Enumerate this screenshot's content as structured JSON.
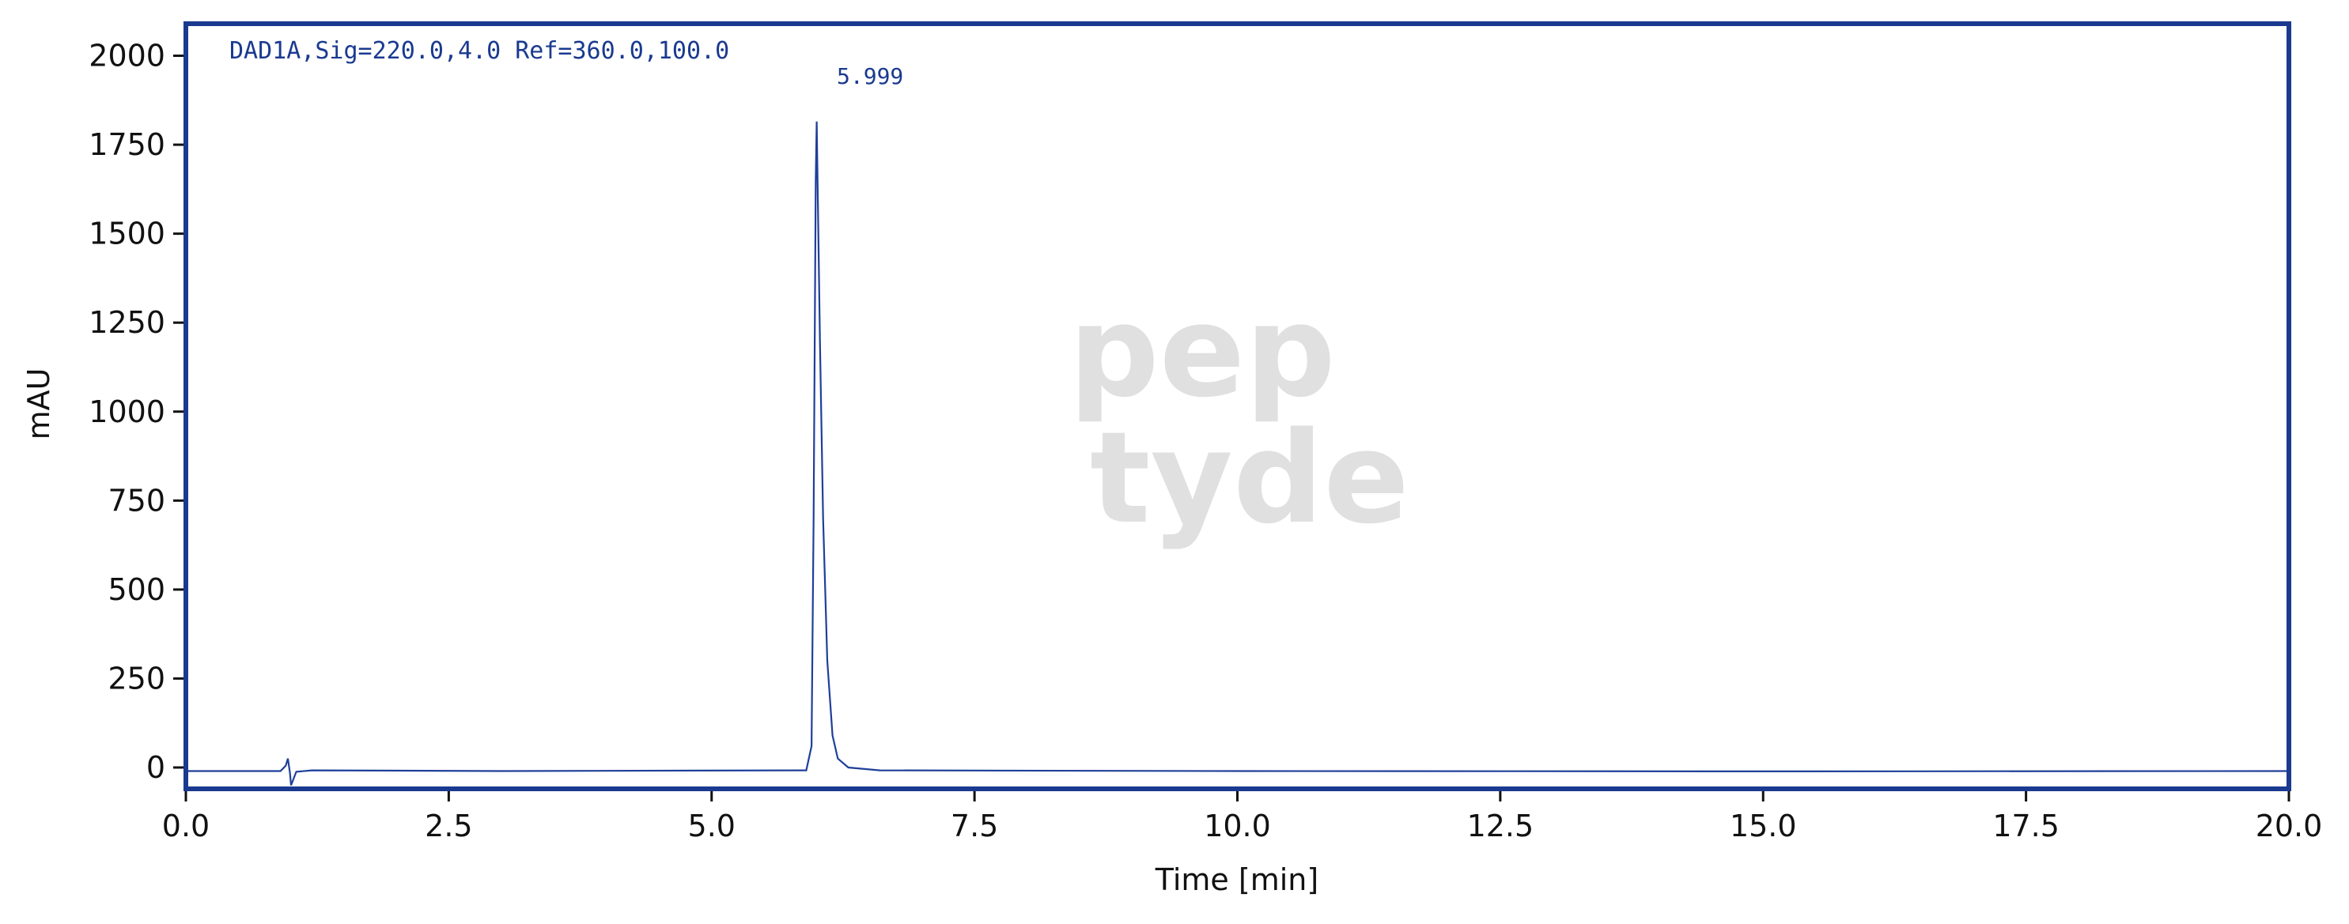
{
  "chart_data": {
    "type": "line",
    "annotation": "DAD1A,Sig=220.0,4.0 Ref=360.0,100.0",
    "peak_label": "5.999",
    "watermark": [
      "pep",
      "tyde"
    ],
    "xlabel": "Time [min]",
    "ylabel": "mAU",
    "xlim": [
      0,
      20
    ],
    "ylim": [
      -60,
      2090
    ],
    "xticks": [
      {
        "value": 0,
        "label": "0.0"
      },
      2.5,
      {
        "value": 5,
        "label": "5.0"
      },
      7.5,
      {
        "value": 10,
        "label": "10.0"
      },
      12.5,
      {
        "value": 15,
        "label": "15.0"
      },
      17.5,
      {
        "value": 20,
        "label": "20.0"
      }
    ],
    "yticks": [
      0,
      250,
      500,
      750,
      1000,
      1250,
      1500,
      1750,
      2000
    ],
    "color": "#1f3f99",
    "x": [
      0,
      0.9,
      0.95,
      0.97,
      0.99,
      1.0,
      1.05,
      1.2,
      3,
      5.9,
      5.95,
      5.97,
      5.99,
      5.999,
      6.03,
      6.06,
      6.1,
      6.15,
      6.2,
      6.3,
      6.6,
      10,
      15,
      20
    ],
    "values": [
      -10,
      -10,
      5,
      25,
      -15,
      -50,
      -12,
      -8,
      -10,
      -8,
      60,
      700,
      1650,
      1815,
      1200,
      700,
      300,
      90,
      25,
      0,
      -8,
      -10,
      -11,
      -10
    ]
  }
}
